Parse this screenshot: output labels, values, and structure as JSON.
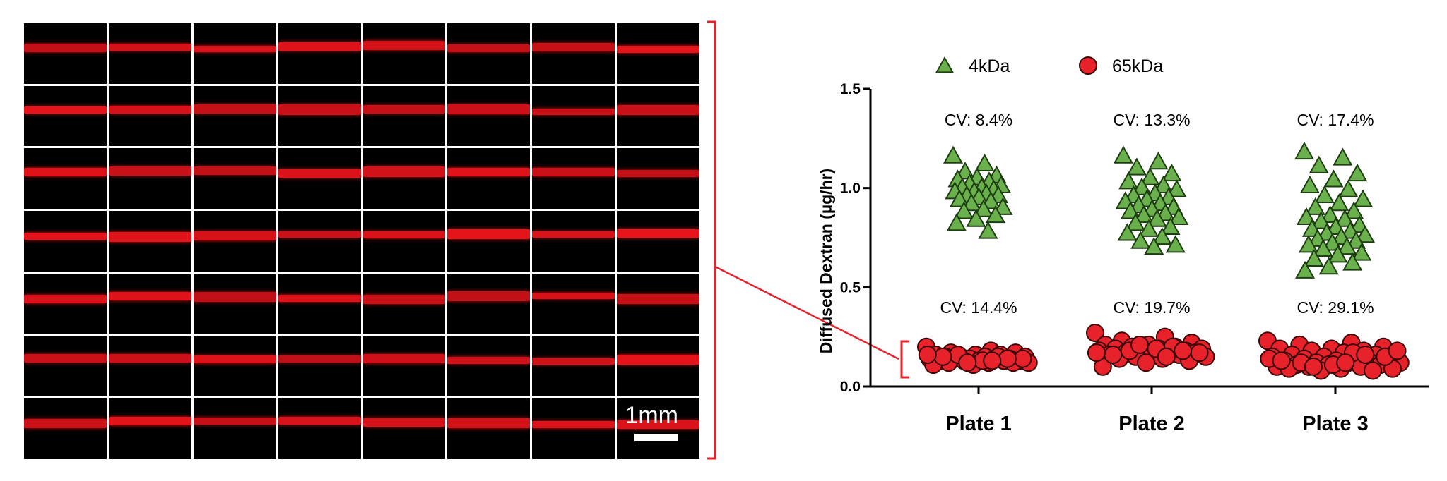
{
  "micrograph": {
    "rows": 7,
    "cols": 8,
    "scale_bar_label": "1mm",
    "channel_color": "#e8141b"
  },
  "chart_data": {
    "type": "scatter",
    "ylabel": "Diffused Dextran (µg/hr)",
    "xlabel": "",
    "categories": [
      "Plate 1",
      "Plate 2",
      "Plate 3"
    ],
    "ylim": [
      0,
      1.5
    ],
    "yticks": [
      "0.0",
      "0.5",
      "1.0",
      "1.5"
    ],
    "legend_position": "top",
    "series": [
      {
        "name": "4kDa",
        "marker": "triangle",
        "color": "#6ab04c",
        "cv_labels": [
          "CV: 8.4%",
          "CV: 13.3%",
          "CV: 17.4%"
        ],
        "values": [
          [
            1.16,
            1.12,
            1.08,
            1.06,
            1.05,
            1.04,
            1.03,
            1.02,
            1.01,
            1.0,
            1.0,
            0.99,
            0.98,
            0.98,
            0.97,
            0.96,
            0.96,
            0.95,
            0.94,
            0.93,
            0.92,
            0.9,
            0.89,
            0.88,
            0.86,
            0.84,
            0.82,
            0.78
          ],
          [
            1.16,
            1.13,
            1.1,
            1.07,
            1.05,
            1.03,
            1.01,
            1.0,
            0.99,
            0.97,
            0.96,
            0.95,
            0.94,
            0.93,
            0.92,
            0.91,
            0.9,
            0.89,
            0.88,
            0.87,
            0.86,
            0.85,
            0.84,
            0.82,
            0.8,
            0.79,
            0.77,
            0.75,
            0.73,
            0.71,
            0.7
          ],
          [
            1.18,
            1.15,
            1.11,
            1.07,
            1.04,
            1.01,
            0.99,
            0.96,
            0.94,
            0.92,
            0.9,
            0.88,
            0.86,
            0.85,
            0.84,
            0.83,
            0.81,
            0.8,
            0.79,
            0.78,
            0.77,
            0.76,
            0.75,
            0.74,
            0.73,
            0.72,
            0.71,
            0.7,
            0.69,
            0.67,
            0.66,
            0.64,
            0.62,
            0.6,
            0.58
          ]
        ]
      },
      {
        "name": "65kDa",
        "marker": "circle",
        "color": "#e8222a",
        "cv_labels": [
          "CV: 14.4%",
          "CV: 19.7%",
          "CV: 29.1%"
        ],
        "values": [
          [
            0.2,
            0.18,
            0.17,
            0.17,
            0.16,
            0.16,
            0.16,
            0.15,
            0.15,
            0.15,
            0.15,
            0.14,
            0.14,
            0.14,
            0.14,
            0.14,
            0.13,
            0.13,
            0.13,
            0.13,
            0.13,
            0.12,
            0.12,
            0.12,
            0.12,
            0.11,
            0.11,
            0.15,
            0.16,
            0.14,
            0.13,
            0.15,
            0.14,
            0.12,
            0.16,
            0.13
          ],
          [
            0.27,
            0.25,
            0.23,
            0.22,
            0.21,
            0.21,
            0.2,
            0.2,
            0.19,
            0.19,
            0.19,
            0.18,
            0.18,
            0.18,
            0.17,
            0.17,
            0.17,
            0.16,
            0.16,
            0.16,
            0.15,
            0.15,
            0.14,
            0.14,
            0.13,
            0.12,
            0.1,
            0.2,
            0.18,
            0.17,
            0.19,
            0.16,
            0.18,
            0.21,
            0.17,
            0.15
          ],
          [
            0.23,
            0.22,
            0.21,
            0.2,
            0.19,
            0.19,
            0.18,
            0.18,
            0.17,
            0.17,
            0.16,
            0.16,
            0.15,
            0.15,
            0.15,
            0.14,
            0.14,
            0.13,
            0.13,
            0.13,
            0.12,
            0.12,
            0.12,
            0.11,
            0.11,
            0.11,
            0.1,
            0.1,
            0.1,
            0.09,
            0.09,
            0.09,
            0.08,
            0.08,
            0.14,
            0.17,
            0.12,
            0.15,
            0.11,
            0.13,
            0.16,
            0.1,
            0.18,
            0.12
          ]
        ]
      }
    ]
  }
}
